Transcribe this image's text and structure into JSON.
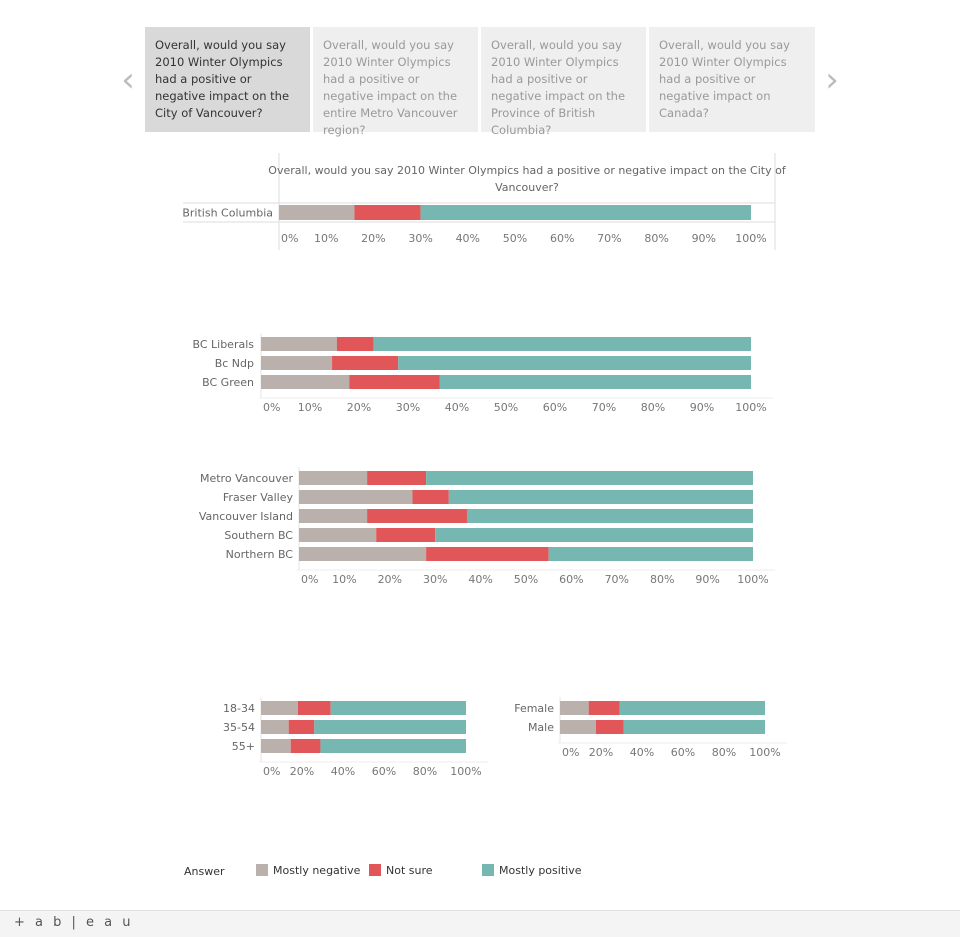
{
  "nav": {
    "prev_icon": "‹",
    "next_icon": "›"
  },
  "tabs": [
    {
      "label": "Overall, would you say 2010 Winter Olympics had a positive or negative impact on the City of Vancouver?",
      "active": true
    },
    {
      "label": "Overall, would you say 2010 Winter Olympics had a positive or negative impact on the entire Metro Vancouver region?",
      "active": false
    },
    {
      "label": "Overall, would you say 2010 Winter Olympics had a positive or negative impact on the Province of British Columbia?",
      "active": false
    },
    {
      "label": "Overall, would you say 2010 Winter Olympics had a positive or negative impact on Canada?",
      "active": false
    }
  ],
  "colors": {
    "mostly_negative": "#bab0ac",
    "not_sure": "#e15759",
    "mostly_positive": "#76b7b2"
  },
  "legend": {
    "title": "Answer",
    "items": [
      {
        "label": "Mostly negative",
        "key": "mostly_negative"
      },
      {
        "label": "Not sure",
        "key": "not_sure"
      },
      {
        "label": "Mostly positive",
        "key": "mostly_positive"
      }
    ]
  },
  "footer": {
    "logo": "+ a b | e a u"
  },
  "chart_data": [
    {
      "type": "bar",
      "stacked": "horizontal-percent",
      "title": "Overall, would you say 2010 Winter Olympics had a positive or negative impact on the City of Vancouver?",
      "categories": [
        "British Columbia"
      ],
      "series": [
        {
          "name": "Mostly negative",
          "values": [
            16
          ]
        },
        {
          "name": "Not sure",
          "values": [
            14
          ]
        },
        {
          "name": "Mostly positive",
          "values": [
            70
          ]
        }
      ],
      "xticks": [
        "0%",
        "10%",
        "20%",
        "30%",
        "40%",
        "50%",
        "60%",
        "70%",
        "80%",
        "90%",
        "100%"
      ],
      "xlim": [
        0,
        100
      ]
    },
    {
      "type": "bar",
      "stacked": "horizontal-percent",
      "categories": [
        "BC Liberals",
        "Bc Ndp",
        "BC Green"
      ],
      "series": [
        {
          "name": "Mostly negative",
          "values": [
            15.5,
            14.5,
            18
          ]
        },
        {
          "name": "Not sure",
          "values": [
            7.5,
            13.5,
            18.5
          ]
        },
        {
          "name": "Mostly positive",
          "values": [
            77,
            72,
            63.5
          ]
        }
      ],
      "xticks": [
        "0%",
        "10%",
        "20%",
        "30%",
        "40%",
        "50%",
        "60%",
        "70%",
        "80%",
        "90%",
        "100%"
      ],
      "xlim": [
        0,
        100
      ]
    },
    {
      "type": "bar",
      "stacked": "horizontal-percent",
      "categories": [
        "Metro Vancouver",
        "Fraser Valley",
        "Vancouver Island",
        "Southern BC",
        "Northern BC"
      ],
      "series": [
        {
          "name": "Mostly negative",
          "values": [
            15,
            25,
            15,
            17,
            28
          ]
        },
        {
          "name": "Not sure",
          "values": [
            13,
            8,
            22,
            13,
            27
          ]
        },
        {
          "name": "Mostly positive",
          "values": [
            72,
            67,
            63,
            70,
            45
          ]
        }
      ],
      "xticks": [
        "0%",
        "10%",
        "20%",
        "30%",
        "40%",
        "50%",
        "60%",
        "70%",
        "80%",
        "90%",
        "100%"
      ],
      "xlim": [
        0,
        100
      ]
    },
    {
      "type": "bar",
      "stacked": "horizontal-percent",
      "categories": [
        "18-34",
        "35-54",
        "55+"
      ],
      "series": [
        {
          "name": "Mostly negative",
          "values": [
            18,
            13.5,
            14.5
          ]
        },
        {
          "name": "Not sure",
          "values": [
            16,
            12.5,
            14.5
          ]
        },
        {
          "name": "Mostly positive",
          "values": [
            66,
            74,
            71
          ]
        }
      ],
      "xticks": [
        "0%",
        "20%",
        "40%",
        "60%",
        "80%",
        "100%"
      ],
      "xlim": [
        0,
        100
      ]
    },
    {
      "type": "bar",
      "stacked": "horizontal-percent",
      "categories": [
        "Female",
        "Male"
      ],
      "series": [
        {
          "name": "Mostly negative",
          "values": [
            14,
            17.5
          ]
        },
        {
          "name": "Not sure",
          "values": [
            15,
            13.5
          ]
        },
        {
          "name": "Mostly positive",
          "values": [
            71,
            69
          ]
        }
      ],
      "xticks": [
        "0%",
        "20%",
        "40%",
        "60%",
        "80%",
        "100%"
      ],
      "xlim": [
        0,
        100
      ]
    }
  ]
}
